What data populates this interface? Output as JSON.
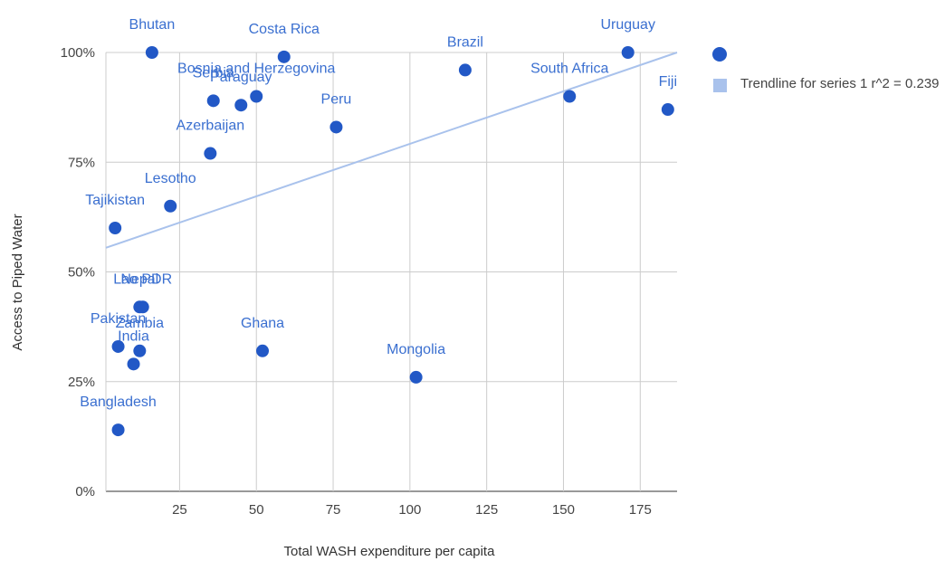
{
  "chart_data": {
    "type": "scatter",
    "x_label": "Total WASH expenditure per capita",
    "y_label": "Access to Piped Water",
    "categories": [
      "Bhutan",
      "Costa Rica",
      "Serbia",
      "Paraguay",
      "Bosnia and Herzegovina",
      "Peru",
      "Azerbaijan",
      "Lesotho",
      "Tajikistan",
      "Nepal",
      "Lao PDR",
      "Pakistan",
      "India",
      "Zambia",
      "Bangladesh",
      "Ghana",
      "Mongolia",
      "Brazil",
      "South Africa",
      "Uruguay",
      "Fiji"
    ],
    "series": [
      {
        "color": "#2258c6",
        "x": [
          16,
          59,
          36,
          45,
          50,
          76,
          35,
          22,
          4,
          12,
          13,
          5,
          10,
          12,
          5,
          52,
          102,
          118,
          152,
          171,
          184
        ],
        "values": [
          100,
          99,
          89,
          88,
          90,
          83,
          77,
          65,
          60,
          42,
          42,
          33,
          29,
          32,
          14,
          32,
          26,
          96,
          90,
          100,
          87
        ]
      },
      {
        "name": "Trendline for series 1 r^2 = 0.239",
        "color": "#a9c2ec",
        "x": [
          1,
          187
        ],
        "values": [
          55.5,
          100
        ]
      }
    ],
    "xlim": [
      1,
      187
    ],
    "ylim": [
      0,
      100
    ],
    "xticks": [
      25,
      50,
      75,
      100,
      125,
      150,
      175
    ],
    "yticks": [
      {
        "value": 0,
        "label": "0%"
      },
      {
        "value": 25,
        "label": "25%"
      },
      {
        "value": 50,
        "label": "50%"
      },
      {
        "value": 75,
        "label": "75%"
      },
      {
        "value": 100,
        "label": "100%"
      }
    ],
    "grid": true
  }
}
